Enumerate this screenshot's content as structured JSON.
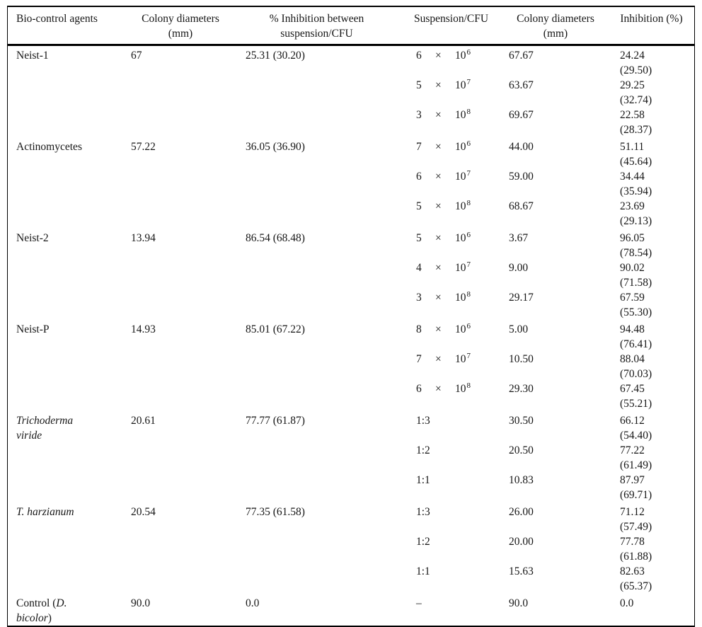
{
  "table": {
    "columns": [
      {
        "line1": "Bio-control agents",
        "line2": ""
      },
      {
        "line1": "Colony diameters",
        "line2": "(mm)"
      },
      {
        "line1": "% Inhibition between",
        "line2": "suspension/CFU"
      },
      {
        "line1": "Suspension/CFU",
        "line2": ""
      },
      {
        "line1": "Colony diameters",
        "line2": "(mm)"
      },
      {
        "line1": "Inhibition (%)",
        "line2": ""
      }
    ],
    "groups": [
      {
        "agent_lines": [
          [
            {
              "t": "Neist-1",
              "i": false
            }
          ]
        ],
        "colony_mm": "67",
        "inhibition_pct": "25.31 (30.20)",
        "rows": [
          {
            "susp": {
              "kind": "sci",
              "base": "6",
              "times": "×",
              "mant": "10",
              "exp": "6"
            },
            "colony": "67.67",
            "inhib": "24.24",
            "inhib_paren": "(29.50)"
          },
          {
            "susp": {
              "kind": "sci",
              "base": "5",
              "times": "×",
              "mant": "10",
              "exp": "7"
            },
            "colony": "63.67",
            "inhib": "29.25",
            "inhib_paren": "(32.74)"
          },
          {
            "susp": {
              "kind": "sci",
              "base": "3",
              "times": "×",
              "mant": "10",
              "exp": "8"
            },
            "colony": "69.67",
            "inhib": "22.58",
            "inhib_paren": "(28.37)"
          }
        ]
      },
      {
        "agent_lines": [
          [
            {
              "t": "Actinomycetes",
              "i": false
            }
          ]
        ],
        "colony_mm": "57.22",
        "inhibition_pct": "36.05 (36.90)",
        "rows": [
          {
            "susp": {
              "kind": "sci",
              "base": "7",
              "times": "×",
              "mant": "10",
              "exp": "6"
            },
            "colony": "44.00",
            "inhib": "51.11",
            "inhib_paren": "(45.64)"
          },
          {
            "susp": {
              "kind": "sci",
              "base": "6",
              "times": "×",
              "mant": "10",
              "exp": "7"
            },
            "colony": "59.00",
            "inhib": "34.44",
            "inhib_paren": "(35.94)"
          },
          {
            "susp": {
              "kind": "sci",
              "base": "5",
              "times": "×",
              "mant": "10",
              "exp": "8"
            },
            "colony": "68.67",
            "inhib": "23.69",
            "inhib_paren": "(29.13)"
          }
        ]
      },
      {
        "agent_lines": [
          [
            {
              "t": "Neist-2",
              "i": false
            }
          ]
        ],
        "colony_mm": "13.94",
        "inhibition_pct": "86.54 (68.48)",
        "rows": [
          {
            "susp": {
              "kind": "sci",
              "base": "5",
              "times": "×",
              "mant": "10",
              "exp": "6"
            },
            "colony": "3.67",
            "inhib": "96.05",
            "inhib_paren": "(78.54)"
          },
          {
            "susp": {
              "kind": "sci",
              "base": "4",
              "times": "×",
              "mant": "10",
              "exp": "7"
            },
            "colony": "9.00",
            "inhib": "90.02",
            "inhib_paren": "(71.58)"
          },
          {
            "susp": {
              "kind": "sci",
              "base": "3",
              "times": "×",
              "mant": "10",
              "exp": "8"
            },
            "colony": "29.17",
            "inhib": "67.59",
            "inhib_paren": "(55.30)"
          }
        ]
      },
      {
        "agent_lines": [
          [
            {
              "t": "Neist-P",
              "i": false
            }
          ]
        ],
        "colony_mm": "14.93",
        "inhibition_pct": "85.01 (67.22)",
        "rows": [
          {
            "susp": {
              "kind": "sci",
              "base": "8",
              "times": "×",
              "mant": "10",
              "exp": "6"
            },
            "colony": "5.00",
            "inhib": "94.48",
            "inhib_paren": "(76.41)"
          },
          {
            "susp": {
              "kind": "sci",
              "base": "7",
              "times": "×",
              "mant": "10",
              "exp": "7"
            },
            "colony": "10.50",
            "inhib": "88.04",
            "inhib_paren": "(70.03)"
          },
          {
            "susp": {
              "kind": "sci",
              "base": "6",
              "times": "×",
              "mant": "10",
              "exp": "8"
            },
            "colony": "29.30",
            "inhib": "67.45",
            "inhib_paren": "(55.21)"
          }
        ]
      },
      {
        "agent_lines": [
          [
            {
              "t": "Trichoderma",
              "i": true
            }
          ],
          [
            {
              "t": "viride",
              "i": true
            }
          ]
        ],
        "colony_mm": "20.61",
        "inhibition_pct": "77.77 (61.87)",
        "rows": [
          {
            "susp": {
              "kind": "plain",
              "text": "1:3"
            },
            "colony": "30.50",
            "inhib": "66.12",
            "inhib_paren": "(54.40)"
          },
          {
            "susp": {
              "kind": "plain",
              "text": "1:2"
            },
            "colony": "20.50",
            "inhib": "77.22",
            "inhib_paren": "(61.49)"
          },
          {
            "susp": {
              "kind": "plain",
              "text": "1:1"
            },
            "colony": "10.83",
            "inhib": "87.97",
            "inhib_paren": "(69.71)"
          }
        ]
      },
      {
        "agent_lines": [
          [
            {
              "t": "T. harzianum",
              "i": true
            }
          ]
        ],
        "colony_mm": "20.54",
        "inhibition_pct": "77.35 (61.58)",
        "rows": [
          {
            "susp": {
              "kind": "plain",
              "text": "1:3"
            },
            "colony": "26.00",
            "inhib": "71.12",
            "inhib_paren": "(57.49)"
          },
          {
            "susp": {
              "kind": "plain",
              "text": "1:2"
            },
            "colony": "20.00",
            "inhib": "77.78",
            "inhib_paren": "(61.88)"
          },
          {
            "susp": {
              "kind": "plain",
              "text": "1:1"
            },
            "colony": "15.63",
            "inhib": "82.63",
            "inhib_paren": "(65.37)"
          }
        ]
      },
      {
        "agent_lines": [
          [
            {
              "t": "Control (",
              "i": false
            },
            {
              "t": "D.",
              "i": true
            }
          ],
          [
            {
              "t": "bicolor",
              "i": true
            },
            {
              "t": ")",
              "i": false
            }
          ]
        ],
        "colony_mm": "90.0",
        "inhibition_pct": "0.0",
        "rows": [
          {
            "susp": {
              "kind": "plain",
              "text": "–"
            },
            "colony": "90.0",
            "inhib": "0.0",
            "inhib_paren": ""
          }
        ]
      }
    ],
    "colors": {
      "text": "#161616",
      "rule": "#000000",
      "background": "#ffffff"
    }
  }
}
